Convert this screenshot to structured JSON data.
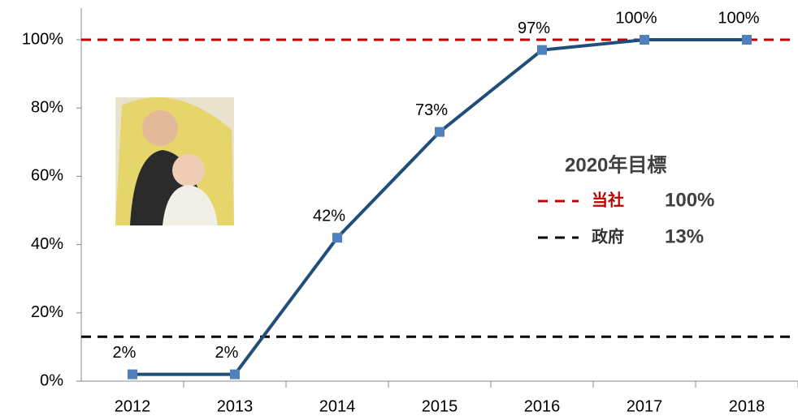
{
  "chart_data": {
    "type": "line",
    "categories": [
      "2012",
      "2013",
      "2014",
      "2015",
      "2016",
      "2017",
      "2018"
    ],
    "series": [
      {
        "color": "#1f4e79",
        "marker_color": "#4f81bd",
        "values": [
          2,
          2,
          42,
          73,
          97,
          100,
          100
        ],
        "value_labels": [
          "2%",
          "2%",
          "42%",
          "73%",
          "97%",
          "100%",
          "100%"
        ]
      }
    ],
    "ylim": [
      0,
      100
    ],
    "yticks": [
      {
        "value": 0,
        "label": "0%"
      },
      {
        "value": 20,
        "label": "20%"
      },
      {
        "value": 40,
        "label": "40%"
      },
      {
        "value": 60,
        "label": "60%"
      },
      {
        "value": 80,
        "label": "80%"
      },
      {
        "value": 100,
        "label": "100%"
      }
    ],
    "legend_title": "2020年目標",
    "reference_lines": [
      {
        "name": "当社",
        "value": 100,
        "value_label": "100%",
        "color": "#c00000"
      },
      {
        "name": "政府",
        "value": 13,
        "value_label": "13%",
        "color": "#000000"
      }
    ]
  }
}
